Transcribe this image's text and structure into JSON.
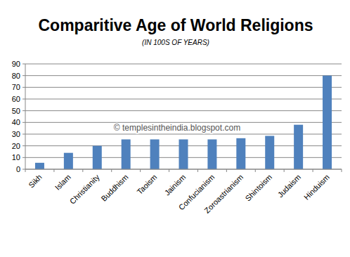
{
  "chart_data": {
    "type": "bar",
    "title": "Comparitive Age of World Religions",
    "subtitle": "(IN 100S OF YEARS)",
    "annotations": [
      "© templesintheindia.blogspot.com"
    ],
    "categories": [
      "Sikh",
      "Islam",
      "Christianity",
      "Buddhism",
      "Taoism",
      "Jainism",
      "Confucianism",
      "Zoroastrianism",
      "Shintoism",
      "Judaism",
      "Hinduism"
    ],
    "values": [
      5.5,
      14,
      20,
      25.5,
      25.5,
      25.5,
      25.5,
      26.5,
      28.5,
      38,
      80
    ],
    "color": "#4f81bd",
    "ylim": [
      0,
      90
    ],
    "yticks": [
      0,
      10,
      20,
      30,
      40,
      50,
      60,
      70,
      80,
      90
    ],
    "grid": true
  }
}
